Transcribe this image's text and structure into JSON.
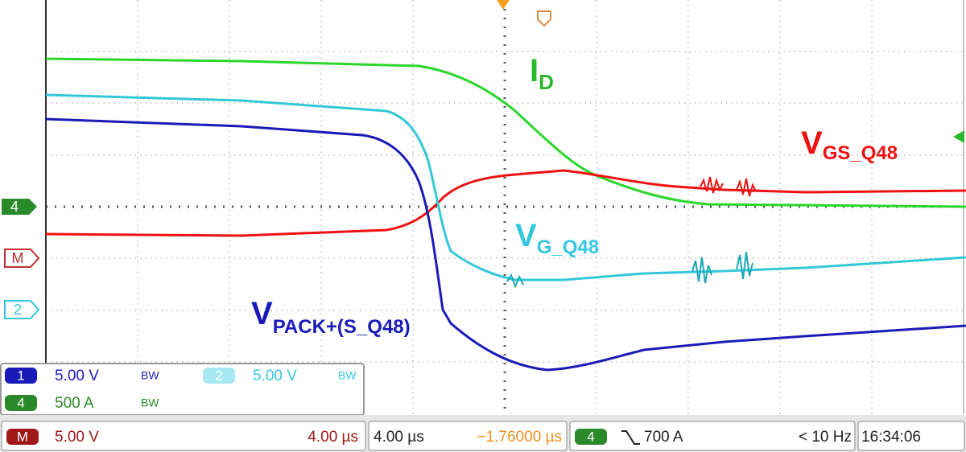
{
  "trace_labels": [
    {
      "main": "I",
      "sub": "D"
    },
    {
      "main": "V",
      "sub": "GS_Q48"
    },
    {
      "main": "V",
      "sub": "G_Q48"
    },
    {
      "main": "V",
      "sub": "PACK+(S_Q48)"
    }
  ],
  "markers": [
    "4",
    "M",
    "2"
  ],
  "channels": [
    {
      "id": "1",
      "scale": "5.00 V",
      "bw": "BW"
    },
    {
      "id": "2",
      "scale": "5.00 V",
      "bw": "BW"
    },
    {
      "id": "4",
      "scale": "500 A",
      "bw": "BW"
    }
  ],
  "math": {
    "id": "M",
    "scale": "5.00 V",
    "timebase": "4.00 µs"
  },
  "horizontal": {
    "timebase": "4.00 µs",
    "position": "−1.76000 µs"
  },
  "trigger": {
    "source": "4",
    "level": "700 A"
  },
  "frequency": "< 10 Hz",
  "time": "16:34:06"
}
